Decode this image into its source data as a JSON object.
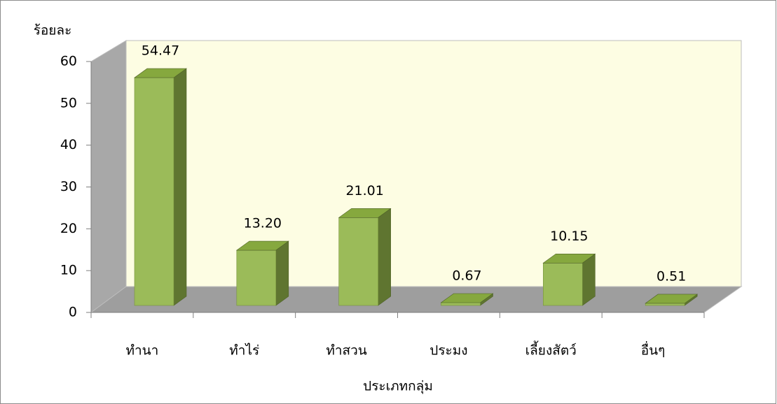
{
  "chart_data": {
    "type": "bar",
    "categories": [
      "ทำนา",
      "ทำไร่",
      "ทำสวน",
      "ประมง",
      "เลี้ยงสัตว์",
      "อื่นๆ"
    ],
    "values": [
      54.47,
      13.2,
      21.01,
      0.67,
      10.15,
      0.51
    ],
    "value_labels": [
      "54.47",
      "13.20",
      "21.01",
      "0.67",
      "10.15",
      "0.51"
    ],
    "color": "#9bbb59",
    "ylim": [
      0,
      60
    ],
    "yticks": [
      0,
      10,
      20,
      30,
      40,
      50,
      60
    ],
    "y_label": "ร้อยละ",
    "x_label": "ประเภทกลุ่ม"
  }
}
